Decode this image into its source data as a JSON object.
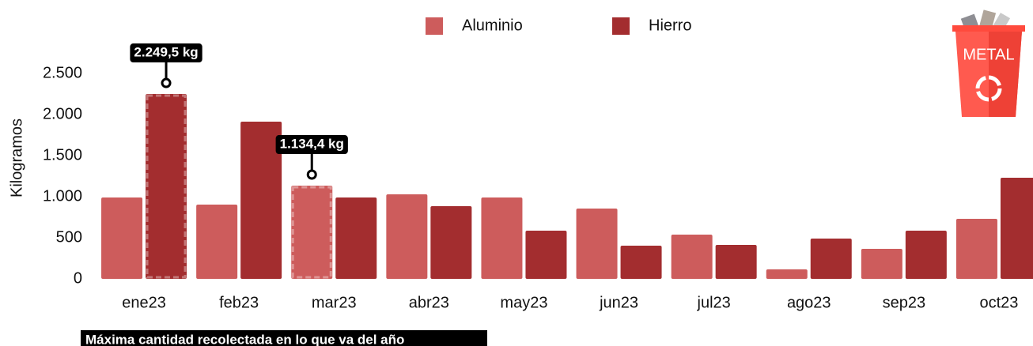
{
  "chart_data": {
    "type": "bar",
    "y_label": "Kilogramos",
    "categories": [
      "ene23",
      "feb23",
      "mar23",
      "abr23",
      "may23",
      "jun23",
      "jul23",
      "ago23",
      "sep23",
      "oct23"
    ],
    "series": [
      {
        "name": "Aluminio",
        "color": "#cd5c5c",
        "values": [
          990,
          904,
          1134.4,
          1029,
          990,
          856,
          538,
          115,
          365,
          731
        ],
        "value_labels": [
          null,
          null,
          "1.134,4 kg",
          null,
          null,
          null,
          null,
          null,
          null,
          null
        ]
      },
      {
        "name": "Hierro",
        "color": "#a32d2f",
        "values": [
          2249.5,
          1913,
          990,
          885,
          587,
          404,
          413,
          490,
          587,
          1231
        ],
        "value_labels": [
          "2.249,5 kg",
          null,
          null,
          null,
          null,
          null,
          null,
          null,
          null,
          null
        ]
      }
    ],
    "ylim": [
      0,
      2500
    ],
    "yticks": [
      0,
      500,
      {
        "value": 1000,
        "label": "1.000"
      },
      {
        "value": 1500,
        "label": "1.500"
      },
      {
        "value": 2000,
        "label": "2.000"
      },
      {
        "value": 2500,
        "label": "2.500"
      }
    ],
    "grid": false,
    "legend": "top",
    "note": "Máxima cantidad recolectada en lo que va del año",
    "icon_label": "METAL"
  }
}
